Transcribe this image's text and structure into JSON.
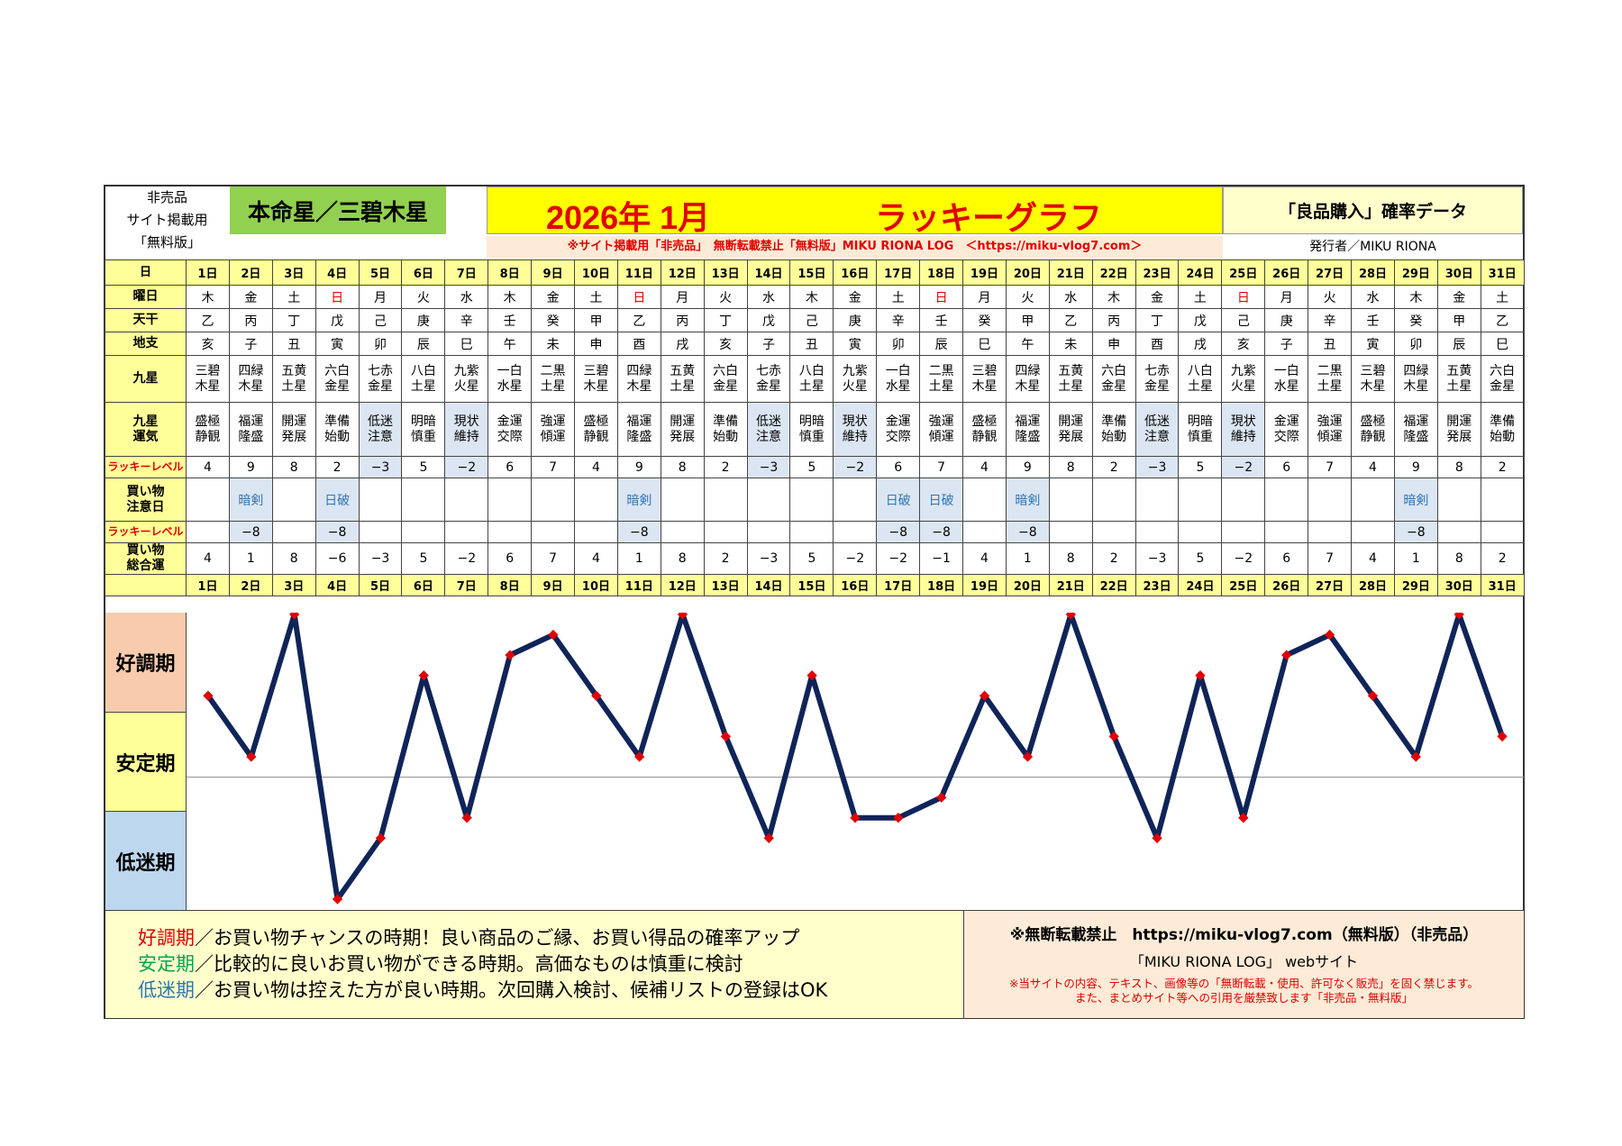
{
  "header": {
    "left_lines": [
      "非売品",
      "サイト掲載用",
      "「無料版」"
    ],
    "honmeisei": "本命星／三碧木星",
    "year_month": "2026年 1月",
    "title": "ラッキーグラフ",
    "subject": "「良品購入」確率データ",
    "notice": "※サイト掲載用「非売品」　無断転載禁止「無料版」MIKU RIONA LOG　＜https://miku-vlog7.com＞",
    "publisher": "発行者／MIKU RIONA"
  },
  "labels": {
    "day": "日",
    "weekday": "曜日",
    "tenkan": "天干",
    "chishi": "地支",
    "kyusei": [
      "九星"
    ],
    "kyusei_unki": [
      "九星",
      "運気"
    ],
    "lucky_level": "ラッキーレベル",
    "kaimono_chui": [
      "買い物",
      "注意日"
    ],
    "lucky_level2": "ラッキーレベル",
    "kaimono_sougou": [
      "買い物",
      "総合運"
    ]
  },
  "table": {
    "days": [
      "1日",
      "2日",
      "3日",
      "4日",
      "5日",
      "6日",
      "7日",
      "8日",
      "9日",
      "10日",
      "11日",
      "12日",
      "13日",
      "14日",
      "15日",
      "16日",
      "17日",
      "18日",
      "19日",
      "20日",
      "21日",
      "22日",
      "23日",
      "24日",
      "25日",
      "26日",
      "27日",
      "28日",
      "29日",
      "30日",
      "31日"
    ],
    "weekdays": [
      "木",
      "金",
      "土",
      "日",
      "月",
      "火",
      "水",
      "木",
      "金",
      "土",
      "日",
      "月",
      "火",
      "水",
      "木",
      "金",
      "土",
      "日",
      "月",
      "火",
      "水",
      "木",
      "金",
      "土",
      "日",
      "月",
      "火",
      "水",
      "木",
      "金",
      "土"
    ],
    "tenkan": [
      "乙",
      "丙",
      "丁",
      "戊",
      "己",
      "庚",
      "辛",
      "壬",
      "癸",
      "甲",
      "乙",
      "丙",
      "丁",
      "戊",
      "己",
      "庚",
      "辛",
      "壬",
      "癸",
      "甲",
      "乙",
      "丙",
      "丁",
      "戊",
      "己",
      "庚",
      "辛",
      "壬",
      "癸",
      "甲",
      "乙"
    ],
    "chishi": [
      "亥",
      "子",
      "丑",
      "寅",
      "卯",
      "辰",
      "巳",
      "午",
      "未",
      "申",
      "酉",
      "戌",
      "亥",
      "子",
      "丑",
      "寅",
      "卯",
      "辰",
      "巳",
      "午",
      "未",
      "申",
      "酉",
      "戌",
      "亥",
      "子",
      "丑",
      "寅",
      "卯",
      "辰",
      "巳"
    ],
    "kyusei": [
      [
        "三碧",
        "木星"
      ],
      [
        "四緑",
        "木星"
      ],
      [
        "五黄",
        "土星"
      ],
      [
        "六白",
        "金星"
      ],
      [
        "七赤",
        "金星"
      ],
      [
        "八白",
        "土星"
      ],
      [
        "九紫",
        "火星"
      ],
      [
        "一白",
        "水星"
      ],
      [
        "二黒",
        "土星"
      ],
      [
        "三碧",
        "木星"
      ],
      [
        "四緑",
        "木星"
      ],
      [
        "五黄",
        "土星"
      ],
      [
        "六白",
        "金星"
      ],
      [
        "七赤",
        "金星"
      ],
      [
        "八白",
        "土星"
      ],
      [
        "九紫",
        "火星"
      ],
      [
        "一白",
        "水星"
      ],
      [
        "二黒",
        "土星"
      ],
      [
        "三碧",
        "木星"
      ],
      [
        "四緑",
        "木星"
      ],
      [
        "五黄",
        "土星"
      ],
      [
        "六白",
        "金星"
      ],
      [
        "七赤",
        "金星"
      ],
      [
        "八白",
        "土星"
      ],
      [
        "九紫",
        "火星"
      ],
      [
        "一白",
        "水星"
      ],
      [
        "二黒",
        "土星"
      ],
      [
        "三碧",
        "木星"
      ],
      [
        "四緑",
        "木星"
      ],
      [
        "五黄",
        "土星"
      ],
      [
        "六白",
        "金星"
      ]
    ],
    "unki": [
      [
        "盛極",
        "静観"
      ],
      [
        "福運",
        "隆盛"
      ],
      [
        "開運",
        "発展"
      ],
      [
        "準備",
        "始動"
      ],
      [
        "低迷",
        "注意"
      ],
      [
        "明暗",
        "慎重"
      ],
      [
        "現状",
        "維持"
      ],
      [
        "金運",
        "交際"
      ],
      [
        "強運",
        "傾運"
      ],
      [
        "盛極",
        "静観"
      ],
      [
        "福運",
        "隆盛"
      ],
      [
        "開運",
        "発展"
      ],
      [
        "準備",
        "始動"
      ],
      [
        "低迷",
        "注意"
      ],
      [
        "明暗",
        "慎重"
      ],
      [
        "現状",
        "維持"
      ],
      [
        "金運",
        "交際"
      ],
      [
        "強運",
        "傾運"
      ],
      [
        "盛極",
        "静観"
      ],
      [
        "福運",
        "隆盛"
      ],
      [
        "開運",
        "発展"
      ],
      [
        "準備",
        "始動"
      ],
      [
        "低迷",
        "注意"
      ],
      [
        "明暗",
        "慎重"
      ],
      [
        "現状",
        "維持"
      ],
      [
        "金運",
        "交際"
      ],
      [
        "強運",
        "傾運"
      ],
      [
        "盛極",
        "静観"
      ],
      [
        "福運",
        "隆盛"
      ],
      [
        "開運",
        "発展"
      ],
      [
        "準備",
        "始動"
      ]
    ],
    "lucky_level": [
      "4",
      "9",
      "8",
      "2",
      "−3",
      "5",
      "−2",
      "6",
      "7",
      "4",
      "9",
      "8",
      "2",
      "−3",
      "5",
      "−2",
      "6",
      "7",
      "4",
      "9",
      "8",
      "2",
      "−3",
      "5",
      "−2",
      "6",
      "7",
      "4",
      "9",
      "8",
      "2"
    ],
    "chui": [
      "",
      "暗剣",
      "",
      "日破",
      "",
      "",
      "",
      "",
      "",
      "",
      "暗剣",
      "",
      "",
      "",
      "",
      "",
      "日破",
      "日破",
      "",
      "暗剣",
      "",
      "",
      "",
      "",
      "",
      "",
      "",
      "",
      "暗剣",
      "",
      ""
    ],
    "chui_level": [
      "",
      "−8",
      "",
      "−8",
      "",
      "",
      "",
      "",
      "",
      "",
      "−8",
      "",
      "",
      "",
      "",
      "",
      "−8",
      "−8",
      "",
      "−8",
      "",
      "",
      "",
      "",
      "",
      "",
      "",
      "",
      "−8",
      "",
      ""
    ],
    "sougou": [
      "4",
      "1",
      "8",
      "−6",
      "−3",
      "5",
      "−2",
      "6",
      "7",
      "4",
      "1",
      "8",
      "2",
      "−3",
      "5",
      "−2",
      "−2",
      "−1",
      "4",
      "1",
      "8",
      "2",
      "−3",
      "5",
      "−2",
      "6",
      "7",
      "4",
      "1",
      "8",
      "2"
    ]
  },
  "zones": [
    "好調期",
    "安定期",
    "低迷期"
  ],
  "legend": {
    "lines": [
      {
        "term": "好調期",
        "text": "／お買い物チャンスの時期！良い商品のご縁、お買い得品の確率アップ",
        "color": "#e00000"
      },
      {
        "term": "安定期",
        "text": "／比較的に良いお買い物ができる時期。高価なものは慎重に検討",
        "color": "#00a550"
      },
      {
        "term": "低迷期",
        "text": "／お買い物は控えた方が良い時期。次回購入検討、候補リストの登録はOK",
        "color": "#2e75b6"
      }
    ]
  },
  "footer_right": {
    "line1": "※無断転載禁止　https://miku-vlog7.com（無料版）（非売品）",
    "line2": "「MIKU RIONA LOG」 webサイト",
    "line3a": "※当サイトの内容、テキスト、画像等の「無断転載・使用、許可なく販売」を固く禁じます。",
    "line3b": "また、まとめサイト等への引用を厳禁致します「非売品・無料版」"
  },
  "colors": {
    "line": "#0f2458",
    "marker": "#e00000",
    "zone_good": "#f8cbad",
    "zone_stable": "#ffff99",
    "zone_low": "#bdd7ee",
    "header_yellow": "#ffff99"
  },
  "chart_data": {
    "type": "line",
    "x": [
      "1日",
      "2日",
      "3日",
      "4日",
      "5日",
      "6日",
      "7日",
      "8日",
      "9日",
      "10日",
      "11日",
      "12日",
      "13日",
      "14日",
      "15日",
      "16日",
      "17日",
      "18日",
      "19日",
      "20日",
      "21日",
      "22日",
      "23日",
      "24日",
      "25日",
      "26日",
      "27日",
      "28日",
      "29日",
      "30日",
      "31日"
    ],
    "series": [
      {
        "name": "買い物総合運",
        "values": [
          4,
          1,
          8,
          -6,
          -3,
          5,
          -2,
          6,
          7,
          4,
          1,
          8,
          2,
          -3,
          5,
          -2,
          -2,
          -1,
          4,
          1,
          8,
          2,
          -3,
          5,
          -2,
          6,
          7,
          4,
          1,
          8,
          2
        ]
      }
    ],
    "ylim": [
      -6,
      8
    ],
    "grid": false,
    "zero_line": true
  }
}
